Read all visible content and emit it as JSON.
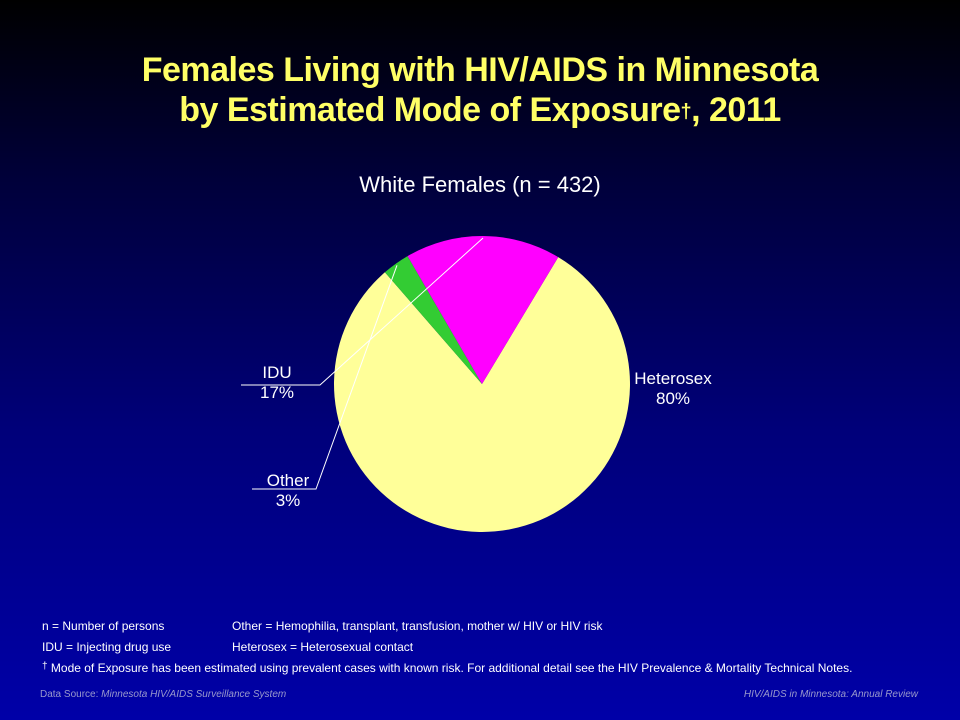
{
  "slide": {
    "title_line1": "Females Living with HIV/AIDS in Minnesota",
    "title_line2": "by Estimated Mode of Exposure",
    "title_dagger": "†",
    "title_year": ", 2011"
  },
  "notes": {
    "n_def": "n = Number of persons",
    "other_def": "Other = Hemophilia, transplant, transfusion, mother w/ HIV or HIV risk",
    "idu_def": "IDU = Injecting drug use",
    "hetero_def": "Heterosex = Heterosexual contact",
    "dagger_symbol": "†",
    "dagger_note": "Mode of Exposure has been estimated using prevalent cases with known risk. For additional detail see the HIV Prevalence & Mortality Technical Notes."
  },
  "footer": {
    "source_label": "Data Source:",
    "source_value": "Minnesota HIV/AIDS Surveillance System",
    "review": "HIV/AIDS in Minnesota: Annual Review"
  },
  "chart_data": {
    "type": "pie",
    "title": "White Females (n = 432)",
    "slices": [
      {
        "label": "Heterosex",
        "value": 80,
        "value_label": "80%",
        "color": "#ffff99"
      },
      {
        "label": "Other",
        "value": 3,
        "value_label": "3%",
        "color": "#33cc33"
      },
      {
        "label": "IDU",
        "value": 17,
        "value_label": "17%",
        "color": "#ff00ff"
      }
    ],
    "start_angle_deg": -59,
    "direction": "clockwise",
    "legend": "none",
    "labels_outside": true
  }
}
